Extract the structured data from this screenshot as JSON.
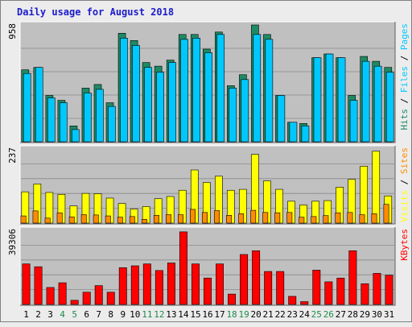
{
  "chart_data": {
    "type": "bar",
    "title": "Daily usage for August 2018",
    "colors": {
      "background": "#ececec",
      "plot_bg": "#c0c0c0",
      "grid": "#8a8a8a",
      "hits": "#1e8a64",
      "files": "#00c8ff",
      "visits": "#ffff00",
      "sites": "#ff8c00",
      "kbytes": "#ff0000",
      "weekday_label": "#000000",
      "weekend_label": "#1e8a4a",
      "title": "#1c1ccc"
    },
    "categories": [
      "1",
      "2",
      "3",
      "4",
      "5",
      "6",
      "7",
      "8",
      "9",
      "10",
      "11",
      "12",
      "13",
      "14",
      "15",
      "16",
      "17",
      "18",
      "19",
      "20",
      "21",
      "22",
      "23",
      "24",
      "25",
      "26",
      "27",
      "28",
      "29",
      "30",
      "31"
    ],
    "weekend_days": [
      "4",
      "5",
      "11",
      "12",
      "18",
      "19",
      "25",
      "26"
    ],
    "panels": [
      {
        "id": "hits_files",
        "ymax_label": "958",
        "ylim": [
          0,
          958
        ],
        "right_labels": [
          {
            "text": "Hits",
            "color": "#1e8a64"
          },
          {
            "text": "Files",
            "color": "#00c8ff"
          },
          {
            "text": "Pages",
            "color": "#00c8ff"
          }
        ],
        "series": [
          {
            "name": "Hits",
            "values": [
              590,
              610,
              380,
              340,
              130,
              440,
              470,
              320,
              890,
              830,
              650,
              620,
              670,
              880,
              880,
              760,
              900,
              460,
              550,
              958,
              880,
              380,
              160,
              150,
              690,
              720,
              690,
              380,
              700,
              660,
              610
            ]
          },
          {
            "name": "Files",
            "values": [
              560,
              610,
              360,
              320,
              100,
              400,
              430,
              290,
              850,
              790,
              610,
              570,
              650,
              840,
              850,
              730,
              880,
              440,
              510,
              880,
              840,
              380,
              160,
              130,
              690,
              720,
              690,
              340,
              660,
              620,
              570
            ]
          }
        ]
      },
      {
        "id": "visits_sites",
        "ymax_label": "237",
        "ylim": [
          0,
          237
        ],
        "right_labels": [
          {
            "text": "Visits",
            "color": "#ffff00"
          },
          {
            "text": "Sites",
            "color": "#ff8c00"
          }
        ],
        "series": [
          {
            "name": "Visits",
            "values": [
              100,
              125,
              98,
              92,
              55,
              95,
              94,
              80,
              63,
              45,
              53,
              78,
              85,
              105,
              170,
              130,
              150,
              105,
              108,
              220,
              135,
              108,
              70,
              58,
              70,
              72,
              115,
              140,
              182,
              230,
              87
            ]
          },
          {
            "name": "Sites",
            "values": [
              23,
              39,
              16,
              33,
              20,
              27,
              26,
              23,
              19,
              21,
              12,
              25,
              27,
              27,
              44,
              34,
              40,
              25,
              30,
              41,
              34,
              33,
              34,
              19,
              21,
              24,
              33,
              34,
              27,
              30,
              60
            ]
          }
        ]
      },
      {
        "id": "kbytes",
        "ymax_label": "39306",
        "ylim": [
          0,
          39306
        ],
        "right_labels": [
          {
            "text": "KBytes",
            "color": "#ff0000"
          }
        ],
        "series": [
          {
            "name": "KBytes",
            "values": [
              21500,
              20000,
              9000,
              11500,
              2200,
              6500,
              10000,
              6500,
              19500,
              20500,
              21500,
              18000,
              22000,
              38500,
              21500,
              14000,
              21500,
              5500,
              26500,
              28500,
              17500,
              17500,
              4300,
              1500,
              18200,
              12000,
              14000,
              28500,
              11000,
              16500,
              15500
            ]
          }
        ]
      }
    ]
  }
}
